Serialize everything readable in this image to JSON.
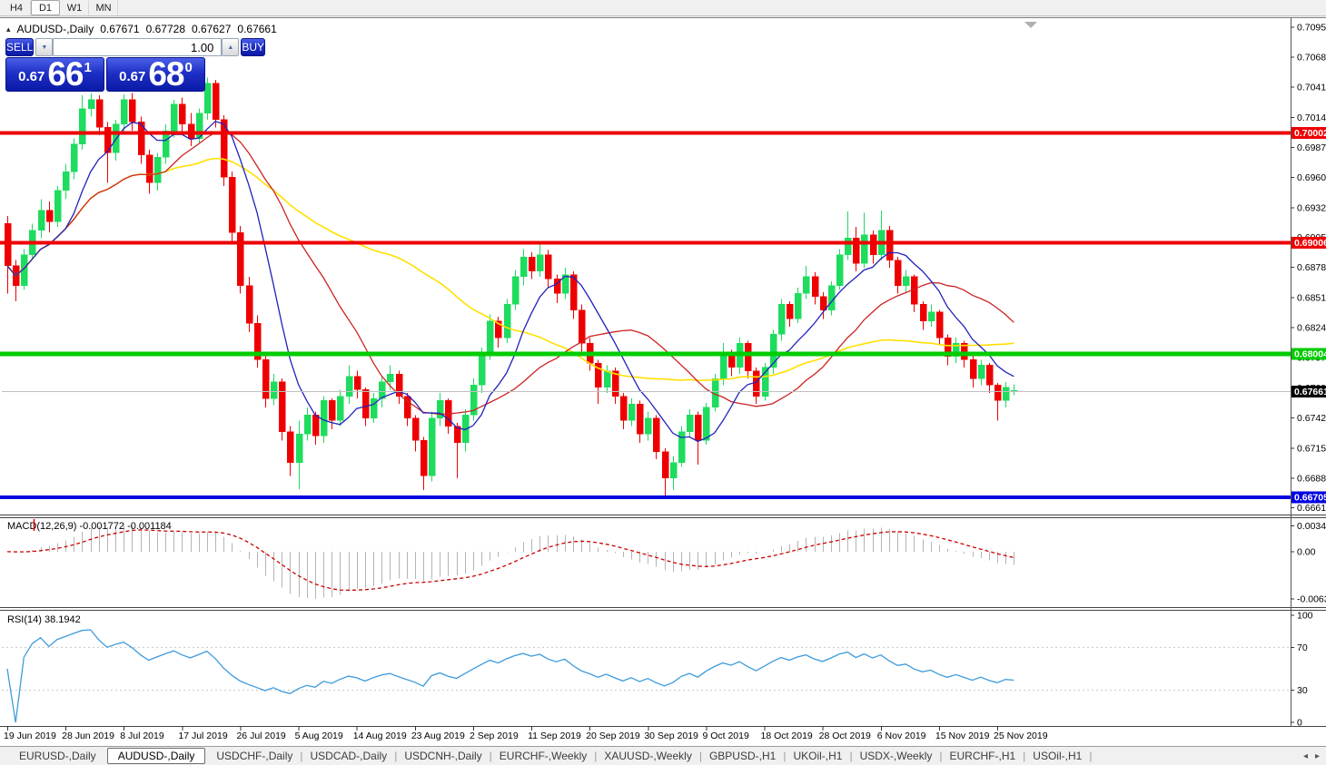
{
  "toolbar": {
    "timeframes": [
      "H4",
      "D1",
      "W1",
      "MN"
    ],
    "active": "D1"
  },
  "header": {
    "collapse_icon": "▴",
    "symbol": "AUDUSD-,Daily",
    "open": "0.67671",
    "high": "0.67728",
    "low": "0.67627",
    "close": "0.67661"
  },
  "trade_panel": {
    "sell_label": "SELL",
    "buy_label": "BUY",
    "volume": "1.00",
    "down_arrow": "▼",
    "up_arrow": "▲",
    "sell_price": {
      "prefix": "0.67",
      "big": "66",
      "sup": "1"
    },
    "buy_price": {
      "prefix": "0.67",
      "big": "68",
      "sup": "0"
    }
  },
  "price_axis": {
    "ticks": [
      "0.70955",
      "0.70685",
      "0.70415",
      "0.70140",
      "0.69870",
      "0.69600",
      "0.69325",
      "0.69055",
      "0.68785",
      "0.68510",
      "0.68240",
      "0.67970",
      "0.67695",
      "0.67425",
      "0.67150",
      "0.66880",
      "0.66610"
    ]
  },
  "levels": [
    {
      "price": 0.70002,
      "label": "0.70002",
      "color": "#ee0000",
      "thickness": 4
    },
    {
      "price": 0.69006,
      "label": "0.69006",
      "color": "#ee0000",
      "thickness": 4
    },
    {
      "price": 0.68004,
      "label": "0.68004",
      "color": "#00cc00",
      "thickness": 5
    },
    {
      "price": 0.66705,
      "label": "0.66705",
      "color": "#0000e0",
      "thickness": 4
    }
  ],
  "current_price": {
    "price": 0.67661,
    "label": "0.67661",
    "line_color": "#c0c0c0",
    "badge_color": "#000000"
  },
  "macd_pane": {
    "label": "MACD(12,26,9) -0.001772 -0.001184",
    "axis_ticks": [
      {
        "v": 0.00349,
        "label": "0.00349"
      },
      {
        "v": 0,
        "label": "0.00"
      },
      {
        "v": -0.00637,
        "label": "-0.00637"
      }
    ],
    "range": [
      -0.0075,
      0.0044
    ],
    "histogram_color": "#b4b4b4",
    "signal_color": "#cc0000"
  },
  "rsi_pane": {
    "label": "RSI(14) 38.1942",
    "axis_ticks": [
      {
        "v": 100,
        "label": "100"
      },
      {
        "v": 70,
        "label": "70"
      },
      {
        "v": 30,
        "label": "30"
      },
      {
        "v": 0,
        "label": "0"
      }
    ],
    "levels": [
      70,
      30
    ],
    "line_color": "#3d9bdc",
    "level_color": "#c8c8c8"
  },
  "tabs": {
    "items": [
      "EURUSD-,Daily",
      "AUDUSD-,Daily",
      "USDCHF-,Daily",
      "USDCAD-,Daily",
      "USDCNH-,Daily",
      "EURCHF-,Weekly",
      "XAUUSD-,Weekly",
      "GBPUSD-,H1",
      "UKOil-,H1",
      "USDX-,Weekly",
      "EURCHF-,H1",
      "USOil-,H1"
    ],
    "active_index": 1,
    "scroll_left": "◂",
    "scroll_right": "▸"
  },
  "chart_data": {
    "type": "candlestick",
    "title": "AUDUSD-,Daily",
    "ylim": [
      0.6655,
      0.7103
    ],
    "x_labels": [
      "19 Jun 2019",
      "28 Jun 2019",
      "8 Jul 2019",
      "17 Jul 2019",
      "26 Jul 2019",
      "5 Aug 2019",
      "14 Aug 2019",
      "23 Aug 2019",
      "2 Sep 2019",
      "11 Sep 2019",
      "20 Sep 2019",
      "30 Sep 2019",
      "9 Oct 2019",
      "18 Oct 2019",
      "28 Oct 2019",
      "6 Nov 2019",
      "15 Nov 2019",
      "25 Nov 2019"
    ],
    "bars_per_label": 7,
    "up_color": "#1ddc5e",
    "down_color": "#ee0000",
    "ma": [
      {
        "period": 45,
        "color": "#ffe000",
        "width": 1.6
      },
      {
        "period": 20,
        "color": "#cc2222",
        "width": 1.3
      },
      {
        "period": 8,
        "color": "#2222bb",
        "width": 1.3
      }
    ],
    "macd": {
      "fast": 12,
      "slow": 26,
      "signal": 9
    },
    "rsi_period": 14,
    "ohlc": [
      [
        0.6918,
        0.6925,
        0.6855,
        0.688
      ],
      [
        0.688,
        0.6885,
        0.6848,
        0.6862
      ],
      [
        0.6862,
        0.6895,
        0.6858,
        0.689
      ],
      [
        0.689,
        0.6918,
        0.6885,
        0.6912
      ],
      [
        0.6912,
        0.694,
        0.6905,
        0.693
      ],
      [
        0.693,
        0.6938,
        0.691,
        0.692
      ],
      [
        0.692,
        0.6952,
        0.6915,
        0.6948
      ],
      [
        0.6948,
        0.6972,
        0.694,
        0.6965
      ],
      [
        0.6965,
        0.6995,
        0.6958,
        0.699
      ],
      [
        0.699,
        0.7034,
        0.6985,
        0.7022
      ],
      [
        0.7022,
        0.7036,
        0.7015,
        0.703
      ],
      [
        0.703,
        0.7034,
        0.6998,
        0.7005
      ],
      [
        0.7005,
        0.701,
        0.6955,
        0.6982
      ],
      [
        0.6982,
        0.7012,
        0.6975,
        0.7008
      ],
      [
        0.7008,
        0.7035,
        0.7,
        0.703
      ],
      [
        0.703,
        0.7036,
        0.7002,
        0.701
      ],
      [
        0.701,
        0.7015,
        0.6972,
        0.698
      ],
      [
        0.698,
        0.6985,
        0.6945,
        0.6955
      ],
      [
        0.6955,
        0.6982,
        0.6948,
        0.6978
      ],
      [
        0.6978,
        0.7008,
        0.6972,
        0.7002
      ],
      [
        0.7002,
        0.703,
        0.6996,
        0.7026
      ],
      [
        0.7026,
        0.7032,
        0.7,
        0.7008
      ],
      [
        0.7008,
        0.7018,
        0.6988,
        0.6995
      ],
      [
        0.6995,
        0.7022,
        0.699,
        0.7018
      ],
      [
        0.7018,
        0.705,
        0.7012,
        0.7045
      ],
      [
        0.7045,
        0.7048,
        0.7005,
        0.7012
      ],
      [
        0.7012,
        0.7016,
        0.6952,
        0.696
      ],
      [
        0.696,
        0.6965,
        0.69,
        0.691
      ],
      [
        0.691,
        0.6916,
        0.6855,
        0.6862
      ],
      [
        0.6862,
        0.687,
        0.682,
        0.6828
      ],
      [
        0.6828,
        0.6835,
        0.6788,
        0.6795
      ],
      [
        0.6795,
        0.68,
        0.6752,
        0.676
      ],
      [
        0.676,
        0.6782,
        0.6754,
        0.6775
      ],
      [
        0.6775,
        0.6778,
        0.6722,
        0.673
      ],
      [
        0.673,
        0.6735,
        0.669,
        0.6702
      ],
      [
        0.6702,
        0.674,
        0.6678,
        0.6728
      ],
      [
        0.6728,
        0.6752,
        0.6722,
        0.6745
      ],
      [
        0.6745,
        0.6748,
        0.6718,
        0.6726
      ],
      [
        0.6726,
        0.6762,
        0.672,
        0.6758
      ],
      [
        0.6758,
        0.676,
        0.6732,
        0.674
      ],
      [
        0.674,
        0.6768,
        0.6735,
        0.6762
      ],
      [
        0.6762,
        0.679,
        0.6755,
        0.678
      ],
      [
        0.678,
        0.6785,
        0.676,
        0.6768
      ],
      [
        0.6768,
        0.677,
        0.6735,
        0.6742
      ],
      [
        0.6742,
        0.6765,
        0.6738,
        0.676
      ],
      [
        0.676,
        0.678,
        0.6752,
        0.6775
      ],
      [
        0.6775,
        0.679,
        0.6768,
        0.6782
      ],
      [
        0.6782,
        0.6785,
        0.6755,
        0.6762
      ],
      [
        0.6762,
        0.6765,
        0.6735,
        0.6742
      ],
      [
        0.6742,
        0.6745,
        0.6712,
        0.6722
      ],
      [
        0.6722,
        0.6725,
        0.6677,
        0.669
      ],
      [
        0.669,
        0.6748,
        0.6685,
        0.6742
      ],
      [
        0.6742,
        0.6765,
        0.6735,
        0.6758
      ],
      [
        0.6758,
        0.676,
        0.6728,
        0.6735
      ],
      [
        0.6735,
        0.6738,
        0.6688,
        0.672
      ],
      [
        0.672,
        0.675,
        0.6712,
        0.6745
      ],
      [
        0.6745,
        0.6778,
        0.674,
        0.6772
      ],
      [
        0.6772,
        0.6806,
        0.6765,
        0.68
      ],
      [
        0.68,
        0.6836,
        0.6795,
        0.683
      ],
      [
        0.683,
        0.6834,
        0.6806,
        0.6815
      ],
      [
        0.6815,
        0.685,
        0.681,
        0.6845
      ],
      [
        0.6845,
        0.6876,
        0.684,
        0.687
      ],
      [
        0.687,
        0.6895,
        0.6862,
        0.6888
      ],
      [
        0.6888,
        0.6892,
        0.6868,
        0.6875
      ],
      [
        0.6875,
        0.6899,
        0.687,
        0.689
      ],
      [
        0.689,
        0.6894,
        0.686,
        0.6868
      ],
      [
        0.6868,
        0.6872,
        0.6846,
        0.6855
      ],
      [
        0.6855,
        0.6878,
        0.685,
        0.6872
      ],
      [
        0.6872,
        0.6875,
        0.6832,
        0.684
      ],
      [
        0.684,
        0.6845,
        0.6802,
        0.681
      ],
      [
        0.681,
        0.6815,
        0.6785,
        0.6792
      ],
      [
        0.6792,
        0.6795,
        0.6755,
        0.677
      ],
      [
        0.677,
        0.679,
        0.6765,
        0.6785
      ],
      [
        0.6785,
        0.6788,
        0.6755,
        0.6762
      ],
      [
        0.6762,
        0.6765,
        0.6732,
        0.674
      ],
      [
        0.674,
        0.676,
        0.6735,
        0.6755
      ],
      [
        0.6755,
        0.6758,
        0.672,
        0.6728
      ],
      [
        0.6728,
        0.6748,
        0.6722,
        0.6742
      ],
      [
        0.6742,
        0.6745,
        0.6705,
        0.6712
      ],
      [
        0.6712,
        0.6715,
        0.6671,
        0.6688
      ],
      [
        0.6688,
        0.6708,
        0.6677,
        0.6702
      ],
      [
        0.6702,
        0.6735,
        0.6698,
        0.673
      ],
      [
        0.673,
        0.675,
        0.6725,
        0.6745
      ],
      [
        0.6745,
        0.6748,
        0.67,
        0.6722
      ],
      [
        0.6722,
        0.6756,
        0.6718,
        0.6752
      ],
      [
        0.6752,
        0.6782,
        0.6748,
        0.6778
      ],
      [
        0.6778,
        0.681,
        0.6772,
        0.68
      ],
      [
        0.68,
        0.6804,
        0.678,
        0.6788
      ],
      [
        0.6788,
        0.6815,
        0.6782,
        0.681
      ],
      [
        0.681,
        0.6812,
        0.6778,
        0.6785
      ],
      [
        0.6785,
        0.6788,
        0.6755,
        0.6762
      ],
      [
        0.6762,
        0.6792,
        0.6758,
        0.6788
      ],
      [
        0.6788,
        0.6822,
        0.6782,
        0.6818
      ],
      [
        0.6818,
        0.685,
        0.6812,
        0.6845
      ],
      [
        0.6845,
        0.6848,
        0.6825,
        0.6832
      ],
      [
        0.6832,
        0.686,
        0.6828,
        0.6855
      ],
      [
        0.6855,
        0.688,
        0.685,
        0.687
      ],
      [
        0.687,
        0.6874,
        0.6845,
        0.6852
      ],
      [
        0.6852,
        0.6856,
        0.6832,
        0.684
      ],
      [
        0.684,
        0.6866,
        0.6835,
        0.6862
      ],
      [
        0.6862,
        0.6895,
        0.6858,
        0.689
      ],
      [
        0.689,
        0.6929,
        0.6885,
        0.6905
      ],
      [
        0.6905,
        0.6915,
        0.6875,
        0.6882
      ],
      [
        0.6882,
        0.6928,
        0.6878,
        0.6908
      ],
      [
        0.6908,
        0.6912,
        0.6882,
        0.689
      ],
      [
        0.689,
        0.693,
        0.6885,
        0.6912
      ],
      [
        0.6912,
        0.6916,
        0.6878,
        0.6885
      ],
      [
        0.6885,
        0.6888,
        0.6855,
        0.6862
      ],
      [
        0.6862,
        0.6876,
        0.6856,
        0.687
      ],
      [
        0.687,
        0.6872,
        0.6838,
        0.6845
      ],
      [
        0.6845,
        0.6848,
        0.6822,
        0.683
      ],
      [
        0.683,
        0.6845,
        0.6825,
        0.6838
      ],
      [
        0.6838,
        0.684,
        0.6808,
        0.6815
      ],
      [
        0.6815,
        0.6818,
        0.679,
        0.6798
      ],
      [
        0.6798,
        0.6815,
        0.6792,
        0.681
      ],
      [
        0.681,
        0.6812,
        0.6788,
        0.6795
      ],
      [
        0.6795,
        0.6798,
        0.677,
        0.6778
      ],
      [
        0.6778,
        0.6795,
        0.6772,
        0.679
      ],
      [
        0.679,
        0.6792,
        0.6765,
        0.6772
      ],
      [
        0.6772,
        0.6774,
        0.674,
        0.6758
      ],
      [
        0.6758,
        0.6775,
        0.6752,
        0.677
      ],
      [
        0.67671,
        0.67728,
        0.67627,
        0.67661
      ]
    ]
  }
}
